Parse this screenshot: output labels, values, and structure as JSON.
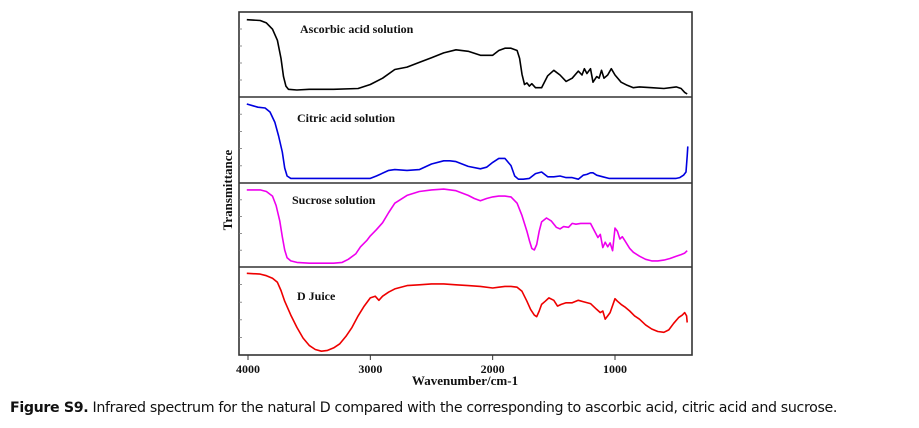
{
  "chart_data": {
    "type": "line",
    "title": "",
    "xlabel": "Wavenumber/cm-1",
    "ylabel": "Transmittance",
    "xlim": [
      4070,
      400
    ],
    "x_reversed": true,
    "xticks": [
      4000,
      3000,
      2000,
      1000
    ],
    "xtick_labels": [
      "4000",
      "3000",
      "2000",
      "1000"
    ],
    "y_units": "normalized transmittance per panel (0 = panel bottom, 1 = panel top)",
    "grid": false,
    "legend": "none (each panel labeled inline, top-left)",
    "panels": [
      {
        "name": "Ascorbic acid solution",
        "color": "#000000",
        "x": [
          4010,
          3900,
          3850,
          3800,
          3760,
          3730,
          3710,
          3690,
          3670,
          3600,
          3500,
          3300,
          3100,
          3000,
          2900,
          2800,
          2700,
          2600,
          2500,
          2400,
          2300,
          2200,
          2100,
          2000,
          1950,
          1900,
          1850,
          1800,
          1780,
          1760,
          1740,
          1720,
          1700,
          1680,
          1650,
          1600,
          1550,
          1500,
          1450,
          1400,
          1350,
          1300,
          1270,
          1250,
          1230,
          1200,
          1180,
          1150,
          1130,
          1110,
          1090,
          1060,
          1030,
          1000,
          950,
          900,
          850,
          800,
          700,
          600,
          500,
          460,
          430,
          410
        ],
        "y": [
          0.94,
          0.93,
          0.9,
          0.82,
          0.68,
          0.45,
          0.22,
          0.1,
          0.06,
          0.05,
          0.06,
          0.06,
          0.07,
          0.12,
          0.2,
          0.31,
          0.34,
          0.4,
          0.46,
          0.52,
          0.56,
          0.54,
          0.49,
          0.49,
          0.55,
          0.58,
          0.58,
          0.55,
          0.45,
          0.25,
          0.12,
          0.14,
          0.1,
          0.13,
          0.08,
          0.08,
          0.23,
          0.3,
          0.24,
          0.16,
          0.2,
          0.29,
          0.24,
          0.32,
          0.26,
          0.32,
          0.15,
          0.22,
          0.2,
          0.3,
          0.2,
          0.24,
          0.32,
          0.24,
          0.15,
          0.11,
          0.08,
          0.09,
          0.08,
          0.07,
          0.09,
          0.07,
          0.02,
          0.0
        ]
      },
      {
        "name": "Citric acid solution",
        "color": "#0000e0",
        "x": [
          4010,
          3920,
          3860,
          3820,
          3780,
          3750,
          3720,
          3700,
          3680,
          3650,
          3600,
          3400,
          3200,
          3000,
          2950,
          2850,
          2800,
          2700,
          2600,
          2500,
          2400,
          2350,
          2300,
          2200,
          2100,
          2050,
          2000,
          1950,
          1900,
          1850,
          1820,
          1790,
          1770,
          1750,
          1700,
          1650,
          1600,
          1550,
          1500,
          1450,
          1400,
          1350,
          1300,
          1260,
          1230,
          1200,
          1180,
          1150,
          1100,
          1050,
          1000,
          950,
          900,
          800,
          700,
          600,
          500,
          470,
          440,
          420,
          410,
          405
        ],
        "y": [
          0.95,
          0.91,
          0.9,
          0.85,
          0.72,
          0.55,
          0.35,
          0.15,
          0.05,
          0.02,
          0.02,
          0.02,
          0.02,
          0.02,
          0.05,
          0.12,
          0.13,
          0.12,
          0.13,
          0.2,
          0.24,
          0.24,
          0.23,
          0.17,
          0.14,
          0.16,
          0.22,
          0.27,
          0.27,
          0.18,
          0.05,
          0.01,
          0.01,
          0.01,
          0.02,
          0.08,
          0.1,
          0.04,
          0.04,
          0.05,
          0.03,
          0.03,
          0.01,
          0.06,
          0.07,
          0.09,
          0.09,
          0.06,
          0.04,
          0.02,
          0.02,
          0.02,
          0.02,
          0.02,
          0.02,
          0.02,
          0.02,
          0.03,
          0.06,
          0.1,
          0.3,
          0.42
        ]
      },
      {
        "name": "Sucrose solution",
        "color": "#ee00ee",
        "x": [
          4010,
          3900,
          3850,
          3800,
          3770,
          3740,
          3720,
          3700,
          3680,
          3650,
          3600,
          3500,
          3400,
          3300,
          3230,
          3180,
          3120,
          3080,
          3030,
          3000,
          2950,
          2900,
          2850,
          2800,
          2700,
          2600,
          2500,
          2400,
          2300,
          2200,
          2150,
          2100,
          2050,
          2000,
          1950,
          1900,
          1850,
          1800,
          1760,
          1720,
          1700,
          1680,
          1660,
          1640,
          1620,
          1600,
          1560,
          1520,
          1480,
          1450,
          1420,
          1380,
          1350,
          1320,
          1280,
          1250,
          1200,
          1160,
          1140,
          1120,
          1100,
          1080,
          1060,
          1040,
          1020,
          1000,
          980,
          960,
          940,
          920,
          880,
          850,
          800,
          750,
          700,
          650,
          600,
          550,
          500,
          460,
          430,
          410
        ],
        "y": [
          0.95,
          0.95,
          0.93,
          0.87,
          0.75,
          0.55,
          0.35,
          0.18,
          0.08,
          0.04,
          0.02,
          0.01,
          0.01,
          0.01,
          0.02,
          0.06,
          0.13,
          0.22,
          0.3,
          0.36,
          0.44,
          0.53,
          0.66,
          0.78,
          0.88,
          0.93,
          0.95,
          0.96,
          0.94,
          0.88,
          0.84,
          0.81,
          0.84,
          0.86,
          0.87,
          0.87,
          0.86,
          0.78,
          0.62,
          0.42,
          0.3,
          0.2,
          0.18,
          0.25,
          0.42,
          0.54,
          0.59,
          0.55,
          0.47,
          0.45,
          0.48,
          0.47,
          0.52,
          0.51,
          0.52,
          0.52,
          0.52,
          0.4,
          0.34,
          0.38,
          0.21,
          0.28,
          0.22,
          0.27,
          0.17,
          0.46,
          0.42,
          0.32,
          0.35,
          0.3,
          0.2,
          0.15,
          0.1,
          0.06,
          0.04,
          0.04,
          0.05,
          0.07,
          0.1,
          0.12,
          0.14,
          0.17
        ]
      },
      {
        "name": "D Juice",
        "color": "#ee0000",
        "x": [
          4010,
          3900,
          3850,
          3800,
          3760,
          3730,
          3700,
          3650,
          3600,
          3550,
          3500,
          3450,
          3400,
          3350,
          3300,
          3250,
          3200,
          3150,
          3100,
          3050,
          3000,
          2960,
          2930,
          2900,
          2850,
          2800,
          2700,
          2600,
          2500,
          2400,
          2300,
          2200,
          2100,
          2000,
          1950,
          1900,
          1850,
          1800,
          1760,
          1720,
          1690,
          1660,
          1640,
          1620,
          1600,
          1570,
          1540,
          1500,
          1470,
          1440,
          1400,
          1350,
          1300,
          1250,
          1200,
          1150,
          1120,
          1100,
          1080,
          1060,
          1040,
          1000,
          980,
          950,
          920,
          880,
          840,
          800,
          750,
          700,
          650,
          600,
          560,
          520,
          480,
          450,
          430,
          415,
          410
        ],
        "y": [
          0.96,
          0.95,
          0.93,
          0.9,
          0.85,
          0.75,
          0.62,
          0.45,
          0.3,
          0.17,
          0.08,
          0.03,
          0.01,
          0.02,
          0.05,
          0.1,
          0.19,
          0.3,
          0.44,
          0.56,
          0.66,
          0.68,
          0.63,
          0.68,
          0.73,
          0.77,
          0.81,
          0.82,
          0.83,
          0.83,
          0.82,
          0.81,
          0.8,
          0.78,
          0.79,
          0.8,
          0.8,
          0.79,
          0.74,
          0.62,
          0.52,
          0.45,
          0.43,
          0.5,
          0.58,
          0.62,
          0.66,
          0.63,
          0.56,
          0.58,
          0.6,
          0.6,
          0.63,
          0.61,
          0.59,
          0.52,
          0.48,
          0.5,
          0.4,
          0.44,
          0.48,
          0.65,
          0.62,
          0.58,
          0.55,
          0.5,
          0.44,
          0.4,
          0.33,
          0.28,
          0.25,
          0.24,
          0.27,
          0.35,
          0.42,
          0.45,
          0.48,
          0.44,
          0.36
        ]
      }
    ]
  },
  "caption": {
    "label": "Figure S9.",
    "text": " Infrared spectrum for the natural D compared with the corresponding to ascorbic acid, citric acid and sucrose."
  }
}
